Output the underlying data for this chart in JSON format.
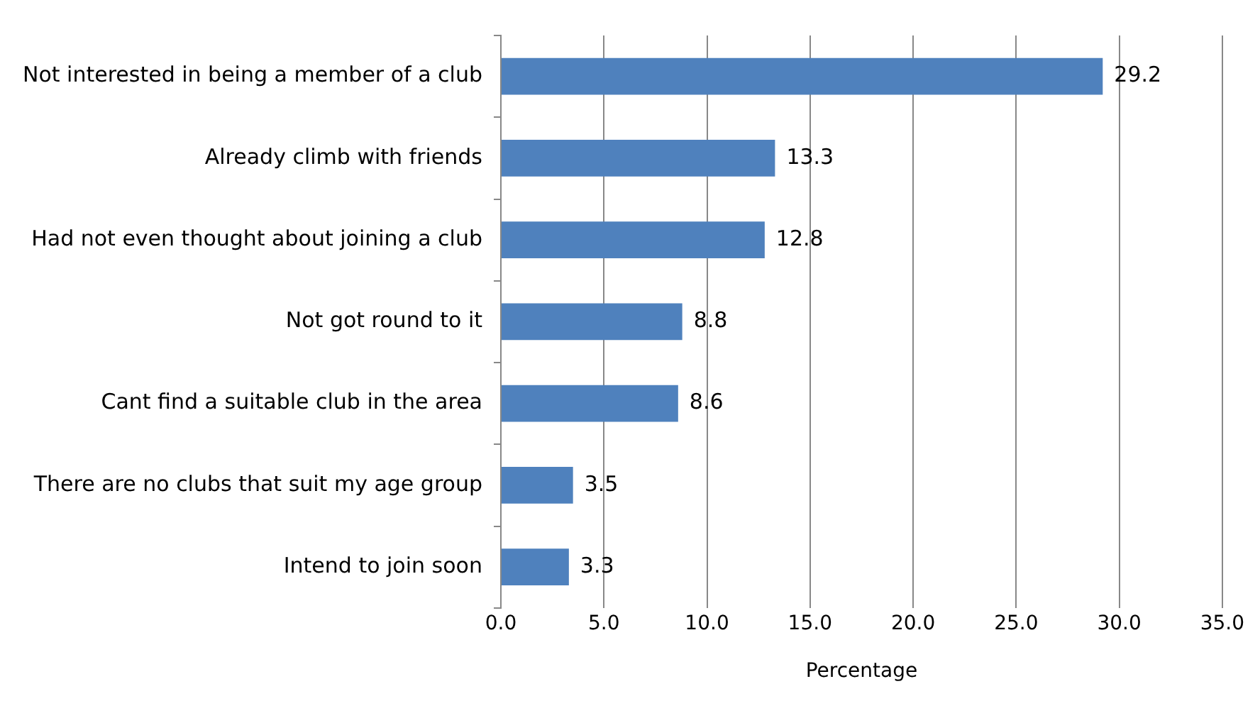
{
  "chart_data": {
    "type": "bar",
    "orientation": "horizontal",
    "xlabel": "Percentage",
    "categories": [
      "Not interested in being a member of a club",
      "Already climb with friends",
      "Had not even thought about joining a club",
      "Not got round to it",
      "Cant find a suitable club in the area",
      "There are no clubs that suit my age group",
      "Intend to join soon"
    ],
    "values": [
      29.2,
      13.3,
      12.8,
      8.8,
      8.6,
      3.5,
      3.3
    ],
    "color": "#4f81bd",
    "xlim": [
      0,
      35
    ],
    "xticks": [
      {
        "value": 0,
        "label": "0.0"
      },
      {
        "value": 5,
        "label": "5.0"
      },
      {
        "value": 10,
        "label": "10.0"
      },
      {
        "value": 15,
        "label": "15.0"
      },
      {
        "value": 20,
        "label": "20.0"
      },
      {
        "value": 25,
        "label": "25.0"
      },
      {
        "value": 30,
        "label": "30.0"
      },
      {
        "value": 35,
        "label": "35.0"
      }
    ],
    "grid": "x",
    "data_labels": true,
    "legend": false
  }
}
